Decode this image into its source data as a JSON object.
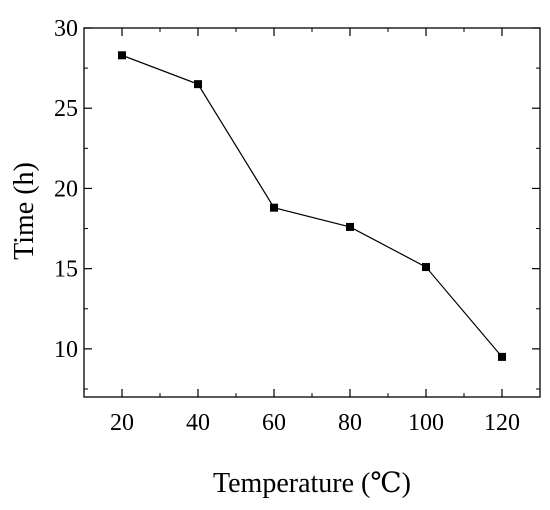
{
  "chart_data": {
    "type": "line",
    "title": "",
    "xlabel": "Temperature (℃)",
    "ylabel": "Time (h)",
    "xlim": [
      10,
      130
    ],
    "ylim": [
      7,
      30
    ],
    "xticks": [
      20,
      40,
      60,
      80,
      100,
      120
    ],
    "yticks": [
      10,
      15,
      20,
      25,
      30
    ],
    "x_tick_labels": [
      "20",
      "40",
      "60",
      "80",
      "100",
      "120"
    ],
    "y_tick_labels": [
      "10",
      "15",
      "20",
      "25",
      "30"
    ],
    "grid": false,
    "marker": "square",
    "series": [
      {
        "x": [
          20,
          40,
          60,
          80,
          100,
          120
        ],
        "y": [
          28.3,
          26.5,
          18.8,
          17.6,
          15.1,
          9.5
        ]
      }
    ],
    "colors": {
      "line": "#000000",
      "marker": "#000000",
      "axis": "#000000"
    }
  }
}
